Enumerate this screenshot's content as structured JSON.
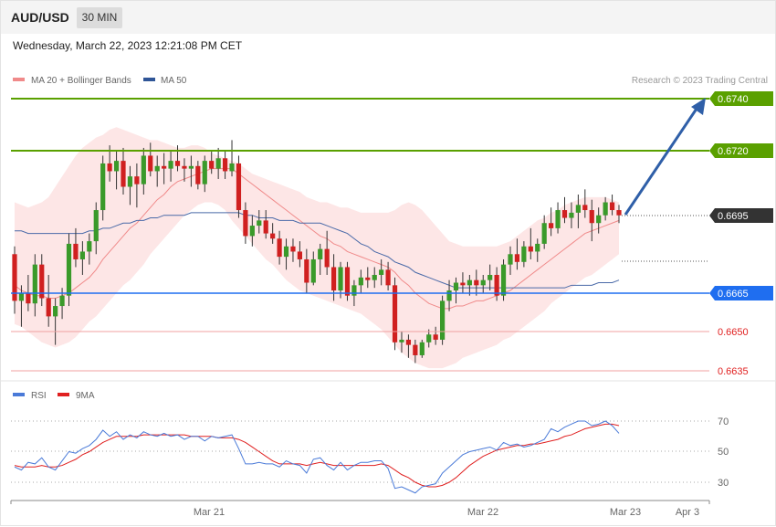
{
  "header": {
    "symbol": "AUD/USD",
    "timeframe": "30 MIN",
    "datetime": "Wednesday, March 22, 2023 12:21:08 PM CET"
  },
  "price_panel": {
    "legend": [
      {
        "label": "MA 20 + Bollinger Bands",
        "color": "#f08a8a"
      },
      {
        "label": "MA 50",
        "color": "#2f5597"
      }
    ],
    "credit": "Research © 2023 Trading Central",
    "levels": [
      {
        "value": "0.6740",
        "color": "#5aa000",
        "style": "target-badge"
      },
      {
        "value": "0.6720",
        "color": "#5aa000",
        "style": "resistance-badge"
      },
      {
        "value": "0.6695",
        "color": "#333333",
        "style": "current-badge"
      },
      {
        "value": "0.6665",
        "color": "#1f6ef0",
        "style": "pivot-badge"
      },
      {
        "value": "0.6650",
        "color": "#e02020",
        "style": "support-text"
      },
      {
        "value": "0.6635",
        "color": "#e02020",
        "style": "support-text"
      }
    ]
  },
  "rsi_panel": {
    "legend": [
      {
        "label": "RSI",
        "color": "#4a7ad8"
      },
      {
        "label": "9MA",
        "color": "#e02020"
      }
    ],
    "levels": [
      "70",
      "50",
      "30"
    ]
  },
  "x_axis": {
    "labels": [
      "Mar 21",
      "Mar 22",
      "Mar 23",
      "Apr 3"
    ]
  },
  "chart_data": {
    "type": "candlestick",
    "instrument": "AUD/USD",
    "interval": "30 MIN",
    "ylim": [
      0.6628,
      0.6752
    ],
    "candles": [
      [
        0.668,
        0.6683,
        0.6657,
        0.6662
      ],
      [
        0.6662,
        0.6668,
        0.6652,
        0.6665
      ],
      [
        0.6665,
        0.6672,
        0.6658,
        0.6661
      ],
      [
        0.6661,
        0.668,
        0.6656,
        0.6676
      ],
      [
        0.6676,
        0.668,
        0.666,
        0.6663
      ],
      [
        0.6663,
        0.6672,
        0.6652,
        0.6656
      ],
      [
        0.6656,
        0.6663,
        0.6645,
        0.666
      ],
      [
        0.666,
        0.6667,
        0.6655,
        0.6664
      ],
      [
        0.6664,
        0.6688,
        0.666,
        0.6684
      ],
      [
        0.6684,
        0.669,
        0.6675,
        0.6678
      ],
      [
        0.6678,
        0.6685,
        0.6672,
        0.6681
      ],
      [
        0.6681,
        0.6688,
        0.6676,
        0.6685
      ],
      [
        0.6685,
        0.67,
        0.668,
        0.6697
      ],
      [
        0.6697,
        0.6718,
        0.6693,
        0.6715
      ],
      [
        0.6715,
        0.6722,
        0.6708,
        0.6712
      ],
      [
        0.6712,
        0.672,
        0.6705,
        0.6716
      ],
      [
        0.6716,
        0.6721,
        0.6703,
        0.6706
      ],
      [
        0.6706,
        0.6714,
        0.6699,
        0.671
      ],
      [
        0.671,
        0.6715,
        0.6698,
        0.6707
      ],
      [
        0.6707,
        0.6721,
        0.6703,
        0.6718
      ],
      [
        0.6718,
        0.6723,
        0.671,
        0.6712
      ],
      [
        0.6712,
        0.6718,
        0.6706,
        0.6714
      ],
      [
        0.6714,
        0.6719,
        0.6707,
        0.6713
      ],
      [
        0.6713,
        0.672,
        0.6708,
        0.6716
      ],
      [
        0.6716,
        0.6722,
        0.6712,
        0.6714
      ],
      [
        0.6714,
        0.6717,
        0.6708,
        0.6713
      ],
      [
        0.6713,
        0.6718,
        0.6706,
        0.6714
      ],
      [
        0.6714,
        0.6716,
        0.6705,
        0.6707
      ],
      [
        0.6707,
        0.6718,
        0.6704,
        0.6716
      ],
      [
        0.6716,
        0.672,
        0.6711,
        0.6713
      ],
      [
        0.6713,
        0.6721,
        0.6709,
        0.6717
      ],
      [
        0.6717,
        0.672,
        0.6709,
        0.6712
      ],
      [
        0.6712,
        0.6724,
        0.671,
        0.6715
      ],
      [
        0.6715,
        0.6718,
        0.6694,
        0.6697
      ],
      [
        0.6697,
        0.67,
        0.6684,
        0.6687
      ],
      [
        0.6687,
        0.6695,
        0.6683,
        0.6691
      ],
      [
        0.6691,
        0.6697,
        0.6688,
        0.6693
      ],
      [
        0.6693,
        0.6697,
        0.6686,
        0.6688
      ],
      [
        0.6688,
        0.6692,
        0.6684,
        0.6686
      ],
      [
        0.6686,
        0.6689,
        0.6676,
        0.6679
      ],
      [
        0.6679,
        0.6686,
        0.6674,
        0.6683
      ],
      [
        0.6683,
        0.6686,
        0.6677,
        0.6681
      ],
      [
        0.6681,
        0.6685,
        0.6675,
        0.6678
      ],
      [
        0.6678,
        0.6682,
        0.6665,
        0.6669
      ],
      [
        0.6669,
        0.6681,
        0.6668,
        0.6678
      ],
      [
        0.6678,
        0.6684,
        0.6672,
        0.6682
      ],
      [
        0.6682,
        0.6689,
        0.6672,
        0.6675
      ],
      [
        0.6675,
        0.668,
        0.6662,
        0.6666
      ],
      [
        0.6666,
        0.6677,
        0.6663,
        0.6675
      ],
      [
        0.6675,
        0.6677,
        0.6662,
        0.6664
      ],
      [
        0.6664,
        0.667,
        0.666,
        0.6668
      ],
      [
        0.6668,
        0.6674,
        0.6665,
        0.6671
      ],
      [
        0.6671,
        0.6675,
        0.6667,
        0.667
      ],
      [
        0.667,
        0.6675,
        0.6667,
        0.6672
      ],
      [
        0.6672,
        0.6678,
        0.6668,
        0.6674
      ],
      [
        0.6674,
        0.6677,
        0.6666,
        0.6668
      ],
      [
        0.6668,
        0.6671,
        0.6643,
        0.6646
      ],
      [
        0.6646,
        0.665,
        0.6642,
        0.6647
      ],
      [
        0.6647,
        0.6649,
        0.664,
        0.6645
      ],
      [
        0.6645,
        0.6647,
        0.6638,
        0.6641
      ],
      [
        0.6641,
        0.6647,
        0.664,
        0.6646
      ],
      [
        0.6646,
        0.6651,
        0.6644,
        0.6649
      ],
      [
        0.6649,
        0.6652,
        0.6645,
        0.6647
      ],
      [
        0.6647,
        0.6664,
        0.6645,
        0.6662
      ],
      [
        0.6662,
        0.667,
        0.6658,
        0.6666
      ],
      [
        0.6666,
        0.6671,
        0.6661,
        0.6669
      ],
      [
        0.6669,
        0.6673,
        0.6665,
        0.6668
      ],
      [
        0.6668,
        0.6672,
        0.6664,
        0.667
      ],
      [
        0.667,
        0.6674,
        0.6664,
        0.6668
      ],
      [
        0.6668,
        0.6672,
        0.6665,
        0.667
      ],
      [
        0.667,
        0.6676,
        0.6666,
        0.6672
      ],
      [
        0.6672,
        0.6675,
        0.6662,
        0.6664
      ],
      [
        0.6664,
        0.6678,
        0.6662,
        0.6676
      ],
      [
        0.6676,
        0.6683,
        0.6672,
        0.668
      ],
      [
        0.668,
        0.6686,
        0.6674,
        0.6677
      ],
      [
        0.6677,
        0.6685,
        0.6675,
        0.6683
      ],
      [
        0.6683,
        0.669,
        0.6678,
        0.6681
      ],
      [
        0.6681,
        0.6686,
        0.6677,
        0.6684
      ],
      [
        0.6684,
        0.6695,
        0.6682,
        0.6692
      ],
      [
        0.6692,
        0.6698,
        0.6687,
        0.669
      ],
      [
        0.669,
        0.67,
        0.6688,
        0.6697
      ],
      [
        0.6697,
        0.6702,
        0.6692,
        0.6694
      ],
      [
        0.6694,
        0.67,
        0.669,
        0.6696
      ],
      [
        0.6696,
        0.6703,
        0.669,
        0.6699
      ],
      [
        0.6699,
        0.6705,
        0.6694,
        0.6697
      ],
      [
        0.6697,
        0.6701,
        0.6685,
        0.6692
      ],
      [
        0.6692,
        0.6698,
        0.6688,
        0.6695
      ],
      [
        0.6695,
        0.6702,
        0.6693,
        0.67
      ],
      [
        0.67,
        0.6703,
        0.6695,
        0.6697
      ],
      [
        0.6697,
        0.6699,
        0.6692,
        0.6695
      ]
    ],
    "ma20": [
      0.6668,
      0.6666,
      0.6665,
      0.6664,
      0.6664,
      0.6663,
      0.6663,
      0.6664,
      0.6665,
      0.6667,
      0.6669,
      0.6671,
      0.6674,
      0.6678,
      0.6681,
      0.6684,
      0.6687,
      0.669,
      0.6692,
      0.6695,
      0.6698,
      0.6701,
      0.6703,
      0.6706,
      0.6708,
      0.6709,
      0.671,
      0.6711,
      0.6712,
      0.6713,
      0.6713,
      0.6713,
      0.6713,
      0.6711,
      0.6709,
      0.6707,
      0.6705,
      0.6703,
      0.6701,
      0.6699,
      0.6697,
      0.6695,
      0.6693,
      0.6691,
      0.6689,
      0.6687,
      0.6686,
      0.6684,
      0.6683,
      0.6681,
      0.668,
      0.6679,
      0.6678,
      0.6677,
      0.6676,
      0.6675,
      0.6673,
      0.667,
      0.6668,
      0.6665,
      0.6663,
      0.6661,
      0.666,
      0.6659,
      0.6659,
      0.666,
      0.666,
      0.6661,
      0.6662,
      0.6662,
      0.6663,
      0.6664,
      0.6665,
      0.6666,
      0.6668,
      0.667,
      0.6672,
      0.6674,
      0.6676,
      0.6678,
      0.668,
      0.6682,
      0.6684,
      0.6686,
      0.6688,
      0.6689,
      0.669,
      0.6691,
      0.6692,
      0.6693
    ],
    "ma50": [
      0.6689,
      0.6689,
      0.6688,
      0.6688,
      0.6688,
      0.6688,
      0.6688,
      0.6688,
      0.6688,
      0.6688,
      0.6688,
      0.6689,
      0.6689,
      0.669,
      0.669,
      0.6691,
      0.6692,
      0.6692,
      0.6693,
      0.6693,
      0.6694,
      0.6694,
      0.6695,
      0.6695,
      0.6695,
      0.6695,
      0.6696,
      0.6696,
      0.6696,
      0.6696,
      0.6696,
      0.6696,
      0.6696,
      0.6696,
      0.6695,
      0.6695,
      0.6694,
      0.6694,
      0.6694,
      0.6693,
      0.6693,
      0.6693,
      0.6692,
      0.6692,
      0.6692,
      0.6692,
      0.6691,
      0.669,
      0.6689,
      0.6688,
      0.6686,
      0.6684,
      0.6683,
      0.6681,
      0.668,
      0.6679,
      0.6677,
      0.6676,
      0.6675,
      0.6673,
      0.6672,
      0.6671,
      0.667,
      0.6669,
      0.6668,
      0.6667,
      0.6667,
      0.6667,
      0.6667,
      0.6667,
      0.6667,
      0.6667,
      0.6667,
      0.6667,
      0.6667,
      0.6667,
      0.6667,
      0.6667,
      0.6667,
      0.6667,
      0.6667,
      0.6667,
      0.6668,
      0.6668,
      0.6668,
      0.6668,
      0.6669,
      0.6669,
      0.6669,
      0.667
    ],
    "bb_upper": [
      0.67,
      0.6699,
      0.6698,
      0.6699,
      0.67,
      0.6702,
      0.6706,
      0.671,
      0.6714,
      0.6718,
      0.6721,
      0.6723,
      0.6725,
      0.6726,
      0.6728,
      0.6729,
      0.6728,
      0.6727,
      0.6726,
      0.6725,
      0.6724,
      0.6724,
      0.6723,
      0.6722,
      0.6721,
      0.6721,
      0.6722,
      0.6722,
      0.6721,
      0.6719,
      0.6718,
      0.6717,
      0.6716,
      0.6715,
      0.6713,
      0.6711,
      0.671,
      0.6709,
      0.6708,
      0.6707,
      0.6706,
      0.6705,
      0.6704,
      0.6702,
      0.6701,
      0.67,
      0.67,
      0.6699,
      0.6698,
      0.6698,
      0.6697,
      0.6696,
      0.6696,
      0.6696,
      0.6696,
      0.6696,
      0.6697,
      0.6699,
      0.67,
      0.6699,
      0.6697,
      0.6694,
      0.6691,
      0.6688,
      0.6685,
      0.6684,
      0.6683,
      0.6683,
      0.6683,
      0.6683,
      0.6683,
      0.6683,
      0.6684,
      0.6685,
      0.6687,
      0.6689,
      0.6691,
      0.6693,
      0.6694,
      0.6696,
      0.6697,
      0.6699,
      0.67,
      0.6701,
      0.6702,
      0.6702,
      0.6702,
      0.6702,
      0.6701,
      0.67
    ],
    "bb_lower": [
      0.6653,
      0.6652,
      0.665,
      0.6648,
      0.6646,
      0.6645,
      0.6644,
      0.6645,
      0.6646,
      0.6648,
      0.6651,
      0.6654,
      0.6656,
      0.6659,
      0.6662,
      0.6665,
      0.6668,
      0.667,
      0.6673,
      0.6676,
      0.668,
      0.6683,
      0.6686,
      0.6689,
      0.6692,
      0.6695,
      0.6697,
      0.6699,
      0.67,
      0.67,
      0.6699,
      0.6697,
      0.6693,
      0.669,
      0.6687,
      0.6684,
      0.6681,
      0.6678,
      0.6676,
      0.6673,
      0.667,
      0.6668,
      0.6666,
      0.6665,
      0.6664,
      0.6663,
      0.6662,
      0.6661,
      0.666,
      0.6659,
      0.6658,
      0.6657,
      0.6655,
      0.6653,
      0.6651,
      0.6648,
      0.6645,
      0.6642,
      0.664,
      0.6638,
      0.6637,
      0.6636,
      0.6636,
      0.6636,
      0.6637,
      0.6638,
      0.664,
      0.6641,
      0.6642,
      0.6643,
      0.6644,
      0.6645,
      0.6647,
      0.6648,
      0.665,
      0.6652,
      0.6654,
      0.6656,
      0.6658,
      0.6661,
      0.6663,
      0.6665,
      0.6667,
      0.6669,
      0.6671,
      0.6672,
      0.6674,
      0.6676,
      0.6678,
      0.668
    ],
    "rsi": [
      40,
      38,
      43,
      42,
      46,
      40,
      38,
      44,
      50,
      49,
      52,
      54,
      58,
      64,
      60,
      63,
      58,
      61,
      59,
      63,
      61,
      60,
      62,
      60,
      61,
      58,
      60,
      60,
      57,
      60,
      59,
      60,
      61,
      52,
      42,
      42,
      43,
      42,
      42,
      40,
      44,
      42,
      41,
      36,
      45,
      46,
      41,
      38,
      43,
      38,
      41,
      43,
      43,
      44,
      44,
      39,
      26,
      27,
      25,
      23,
      27,
      28,
      29,
      36,
      40,
      44,
      48,
      50,
      51,
      52,
      53,
      51,
      56,
      54,
      55,
      53,
      54,
      56,
      58,
      65,
      63,
      66,
      68,
      70,
      70,
      67,
      68,
      70,
      67,
      62
    ],
    "rsi_ma9": [
      41,
      40,
      40,
      40,
      41,
      40,
      40,
      41,
      43,
      45,
      48,
      50,
      53,
      56,
      58,
      60,
      60,
      60,
      60,
      61,
      61,
      61,
      61,
      61,
      61,
      61,
      60,
      60,
      60,
      60,
      59,
      59,
      59,
      58,
      56,
      53,
      50,
      47,
      44,
      42,
      42,
      42,
      42,
      41,
      42,
      43,
      42,
      41,
      41,
      41,
      41,
      41,
      41,
      41,
      42,
      41,
      38,
      35,
      33,
      30,
      28,
      27,
      27,
      28,
      30,
      33,
      37,
      41,
      44,
      47,
      49,
      51,
      52,
      53,
      54,
      54,
      55,
      55,
      56,
      57,
      58,
      60,
      61,
      63,
      65,
      66,
      67,
      68,
      68,
      67
    ]
  }
}
